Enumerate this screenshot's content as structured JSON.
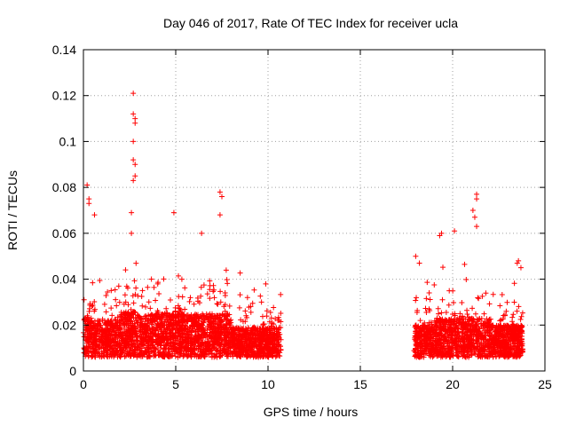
{
  "chart_data": {
    "type": "scatter",
    "title": "Day 046 of 2017, Rate Of TEC Index for receiver ucla",
    "xlabel": "GPS time / hours",
    "ylabel": "ROTI / TECUs",
    "xlim": [
      0,
      25
    ],
    "ylim": [
      0,
      0.14
    ],
    "xticks": [
      "0",
      "5",
      "10",
      "15",
      "20",
      "25"
    ],
    "yticks": [
      "0",
      "0.02",
      "0.04",
      "0.06",
      "0.08",
      "0.1",
      "0.12",
      "0.14"
    ],
    "grid": true,
    "marker": "+",
    "color": "#ff0000",
    "data_segments": [
      {
        "x_start": 0.0,
        "x_end": 10.7
      },
      {
        "x_start": 17.9,
        "x_end": 23.8
      }
    ],
    "notable_points": [
      {
        "x": 0.2,
        "y": 0.081
      },
      {
        "x": 0.3,
        "y": 0.075
      },
      {
        "x": 0.3,
        "y": 0.073
      },
      {
        "x": 0.6,
        "y": 0.068
      },
      {
        "x": 2.7,
        "y": 0.121
      },
      {
        "x": 2.7,
        "y": 0.112
      },
      {
        "x": 2.8,
        "y": 0.11
      },
      {
        "x": 2.8,
        "y": 0.108
      },
      {
        "x": 2.7,
        "y": 0.1
      },
      {
        "x": 2.7,
        "y": 0.092
      },
      {
        "x": 2.8,
        "y": 0.09
      },
      {
        "x": 2.8,
        "y": 0.085
      },
      {
        "x": 2.7,
        "y": 0.083
      },
      {
        "x": 2.6,
        "y": 0.069
      },
      {
        "x": 2.6,
        "y": 0.06
      },
      {
        "x": 4.9,
        "y": 0.069
      },
      {
        "x": 7.4,
        "y": 0.078
      },
      {
        "x": 7.5,
        "y": 0.076
      },
      {
        "x": 7.4,
        "y": 0.068
      },
      {
        "x": 6.4,
        "y": 0.06
      },
      {
        "x": 19.3,
        "y": 0.059
      },
      {
        "x": 19.4,
        "y": 0.06
      },
      {
        "x": 20.1,
        "y": 0.061
      },
      {
        "x": 21.3,
        "y": 0.077
      },
      {
        "x": 21.3,
        "y": 0.075
      },
      {
        "x": 21.1,
        "y": 0.07
      },
      {
        "x": 21.2,
        "y": 0.067
      },
      {
        "x": 21.3,
        "y": 0.063
      },
      {
        "x": 18.0,
        "y": 0.05
      },
      {
        "x": 18.2,
        "y": 0.047
      },
      {
        "x": 23.5,
        "y": 0.047
      },
      {
        "x": 23.7,
        "y": 0.045
      }
    ]
  }
}
